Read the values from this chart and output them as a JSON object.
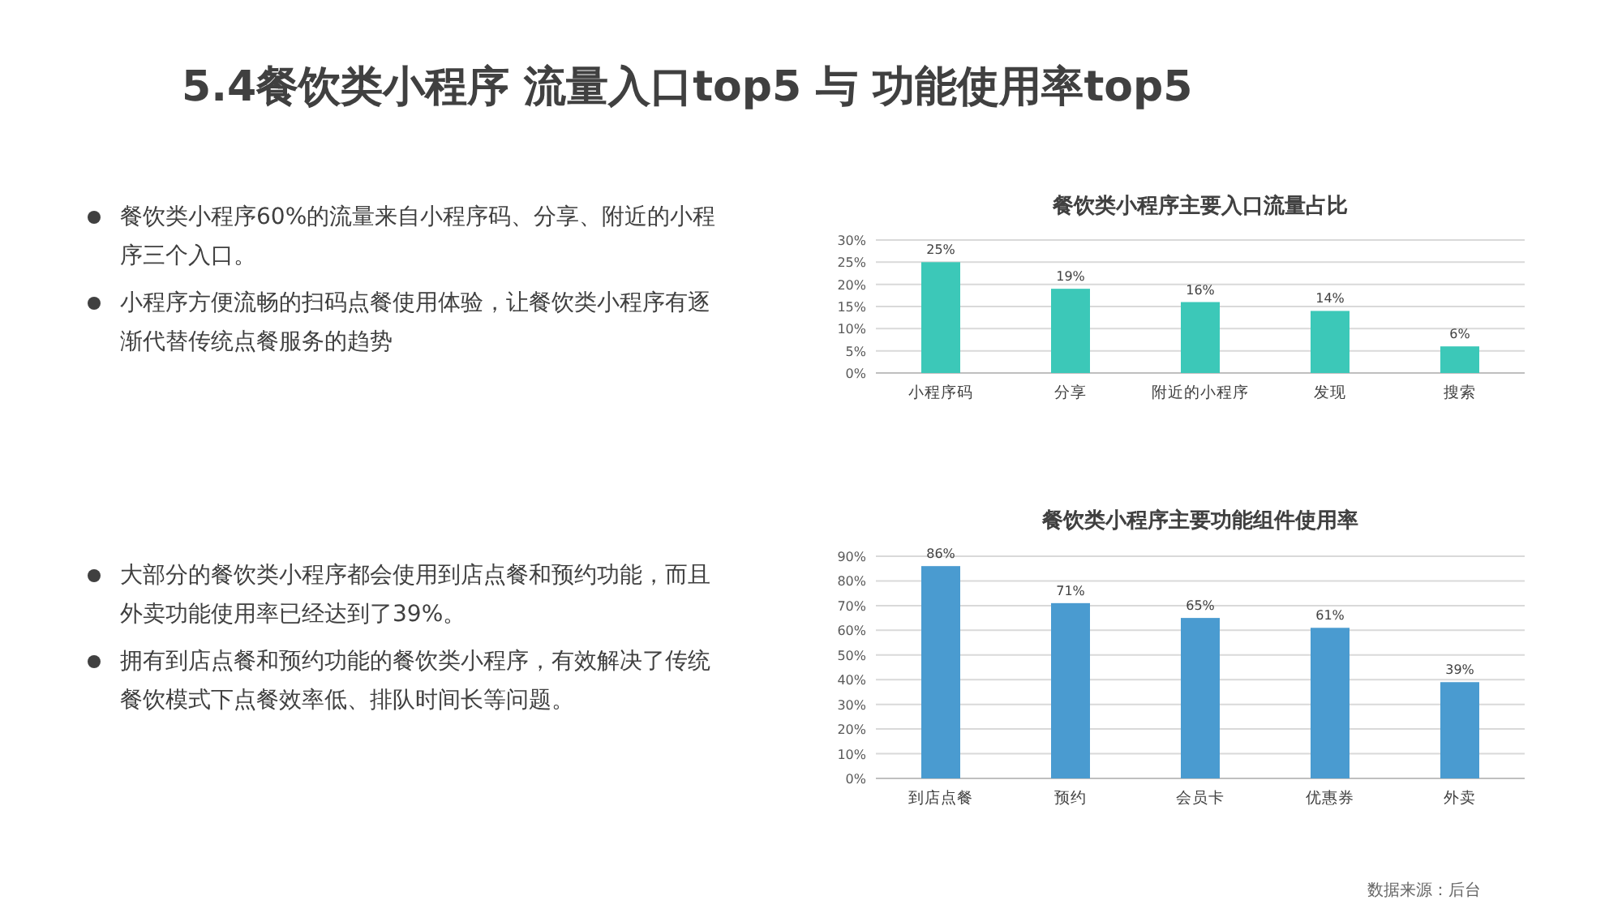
{
  "chart_data": [
    {
      "type": "bar",
      "title": "餐饮类小程序主要入口流量占比",
      "categories": [
        "小程序码",
        "分享",
        "附近的小程序",
        "发现",
        "搜索"
      ],
      "values": [
        25,
        19,
        16,
        14,
        6
      ],
      "value_labels": [
        "25%",
        "19%",
        "16%",
        "14%",
        "6%"
      ],
      "color": "#3cc8b8",
      "ylim": [
        0,
        30
      ],
      "yticks": [
        {
          "value": 0,
          "label": "0%"
        },
        {
          "value": 5,
          "label": "5%"
        },
        {
          "value": 10,
          "label": "10%"
        },
        {
          "value": 15,
          "label": "15%"
        },
        {
          "value": 20,
          "label": "20%"
        },
        {
          "value": 25,
          "label": "25%"
        },
        {
          "value": 30,
          "label": "30%"
        }
      ],
      "grid": "y",
      "annotations": [
        "5.4餐饮类小程序 流量入口top5 与 功能使用率top5",
        "餐饮类小程序60%的流量来自小程序码、分享、附近的小程序三个入口。",
        "小程序方便流畅的扫码点餐使用体验，让餐饮类小程序有逐渐代替传统点餐服务的趋势"
      ]
    },
    {
      "type": "bar",
      "title": "餐饮类小程序主要功能组件使用率",
      "categories": [
        "到店点餐",
        "预约",
        "会员卡",
        "优惠券",
        "外卖"
      ],
      "values": [
        86,
        71,
        65,
        61,
        39
      ],
      "value_labels": [
        "86%",
        "71%",
        "65%",
        "61%",
        "39%"
      ],
      "color": "#4a9bd0",
      "ylim": [
        0,
        90
      ],
      "yticks": [
        {
          "value": 0,
          "label": "0%"
        },
        {
          "value": 10,
          "label": "10%"
        },
        {
          "value": 20,
          "label": "20%"
        },
        {
          "value": 30,
          "label": "30%"
        },
        {
          "value": 40,
          "label": "40%"
        },
        {
          "value": 50,
          "label": "50%"
        },
        {
          "value": 60,
          "label": "60%"
        },
        {
          "value": 70,
          "label": "70%"
        },
        {
          "value": 80,
          "label": "80%"
        },
        {
          "value": 90,
          "label": "90%"
        }
      ],
      "grid": "y",
      "annotations": [
        "大部分的餐饮类小程序都会使用到店点餐和预约功能，而且外卖功能使用率已经达到了39%。",
        "拥有到店点餐和预约功能的餐饮类小程序，有效解决了传统餐饮模式下点餐效率低、排队时间长等问题。",
        "数据来源：后台"
      ]
    }
  ]
}
